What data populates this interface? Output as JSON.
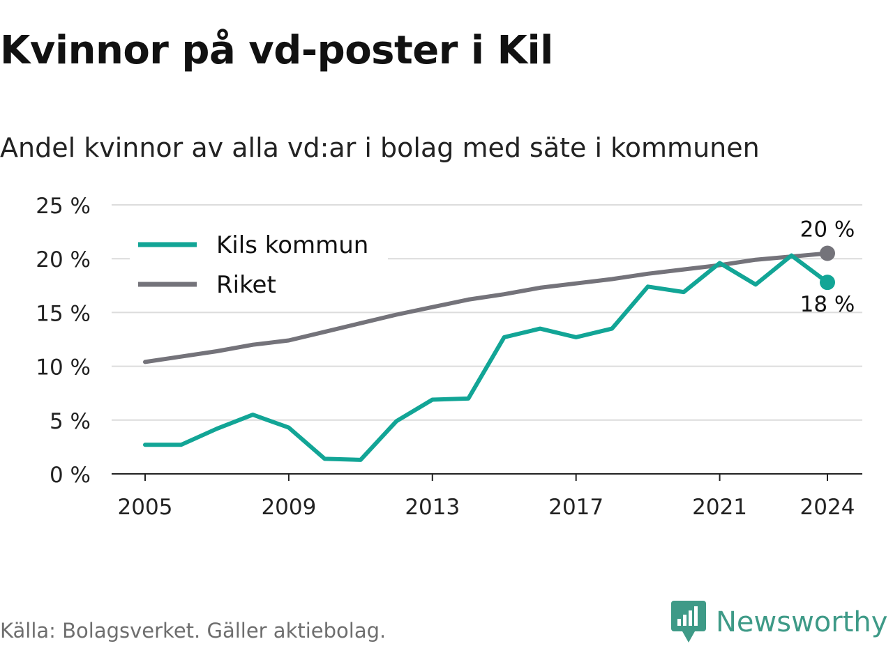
{
  "title": "Kvinnor på vd-poster i Kil",
  "subtitle": "Andel kvinnor av alla vd:ar i bolag med säte i kommunen",
  "source": "Källa: Bolagsverket. Gäller aktiebolag.",
  "brand": {
    "name": "Newsworthy",
    "icon": "newsworthy-logo-icon",
    "color": "#3e9a87"
  },
  "chart_data": {
    "type": "line",
    "x": [
      2005,
      2006,
      2007,
      2008,
      2009,
      2010,
      2011,
      2012,
      2013,
      2014,
      2015,
      2016,
      2017,
      2018,
      2019,
      2020,
      2021,
      2022,
      2023,
      2024
    ],
    "x_ticks": [
      2005,
      2009,
      2013,
      2017,
      2021,
      2024
    ],
    "x_tick_labels": [
      "2005",
      "2009",
      "2013",
      "2017",
      "2021",
      "2024"
    ],
    "ylim": [
      0,
      25
    ],
    "y_ticks": [
      0,
      5,
      10,
      15,
      20,
      25
    ],
    "y_tick_labels": [
      "0 %",
      "5 %",
      "10 %",
      "15 %",
      "20 %",
      "25 %"
    ],
    "grid": true,
    "legend_position": "top-left",
    "series": [
      {
        "name": "Kils kommun",
        "color": "#12a596",
        "values": [
          2.7,
          2.7,
          4.2,
          5.5,
          4.3,
          1.4,
          1.3,
          4.9,
          6.9,
          7.0,
          12.7,
          13.5,
          12.7,
          13.5,
          17.4,
          16.9,
          19.6,
          17.6,
          20.3,
          17.8
        ],
        "end_label": "18 %"
      },
      {
        "name": "Riket",
        "color": "#74737a",
        "values": [
          10.4,
          10.9,
          11.4,
          12.0,
          12.4,
          13.2,
          14.0,
          14.8,
          15.5,
          16.2,
          16.7,
          17.3,
          17.7,
          18.1,
          18.6,
          19.0,
          19.4,
          19.9,
          20.2,
          20.5
        ],
        "end_label": "20 %"
      }
    ]
  }
}
